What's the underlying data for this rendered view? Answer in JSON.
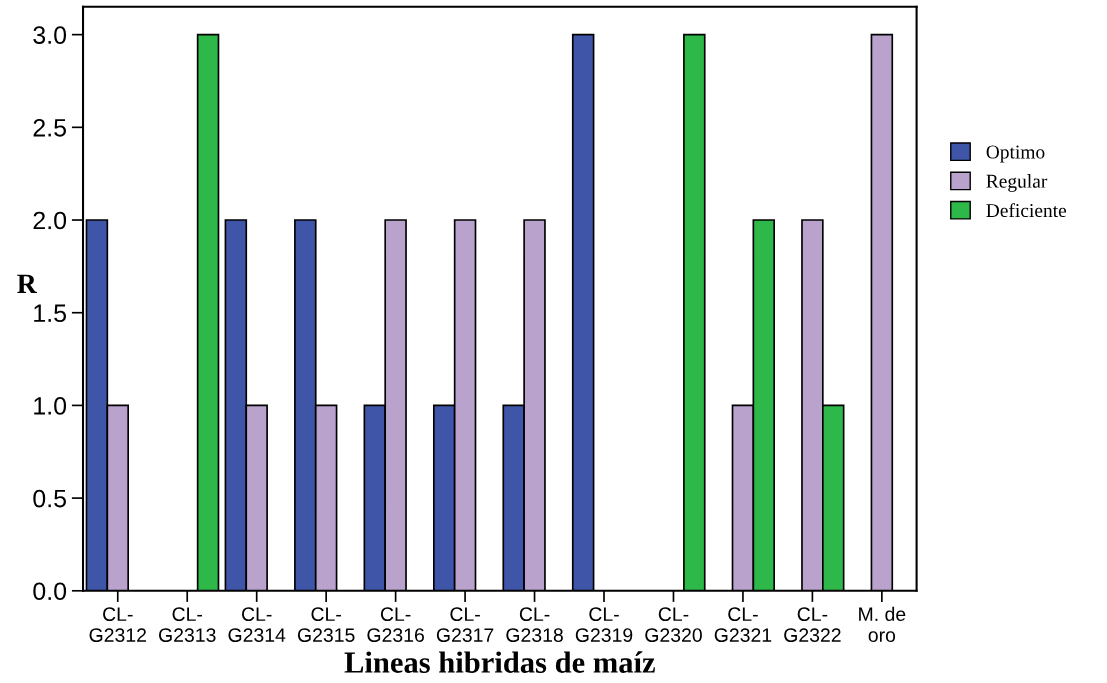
{
  "chart_data": {
    "type": "bar",
    "xlabel": "Lineas hibridas de maíz",
    "ylabel": "R",
    "categories": [
      "CL-\nG2312",
      "CL-\nG2313",
      "CL-\nG2314",
      "CL-\nG2315",
      "CL-\nG2316",
      "CL-\nG2317",
      "CL-\nG2318",
      "CL-\nG2319",
      "CL-\nG2320",
      "CL-\nG2321",
      "CL-\nG2322",
      "M. de\noro"
    ],
    "series": [
      {
        "name": "Optimo",
        "color": "#3f56a8",
        "values": [
          2,
          null,
          2,
          2,
          1,
          1,
          1,
          3,
          null,
          null,
          null,
          null
        ]
      },
      {
        "name": "Regular",
        "color": "#b9a2cc",
        "values": [
          1,
          null,
          1,
          1,
          2,
          2,
          2,
          null,
          null,
          1,
          2,
          3
        ]
      },
      {
        "name": "Deficiente",
        "color": "#2eb84a",
        "values": [
          null,
          3,
          null,
          null,
          null,
          null,
          null,
          null,
          3,
          2,
          1,
          null
        ]
      }
    ],
    "ylim": [
      0,
      3.15
    ],
    "yticks": [
      {
        "value": 0,
        "label": "0.0"
      },
      {
        "value": 0.5,
        "label": "0.5"
      },
      {
        "value": 1,
        "label": "1.0"
      },
      {
        "value": 1.5,
        "label": "1.5"
      },
      {
        "value": 2,
        "label": "2.0"
      },
      {
        "value": 2.5,
        "label": "2.5"
      },
      {
        "value": 3,
        "label": "3.0"
      }
    ],
    "grid": false,
    "legend": "right"
  }
}
